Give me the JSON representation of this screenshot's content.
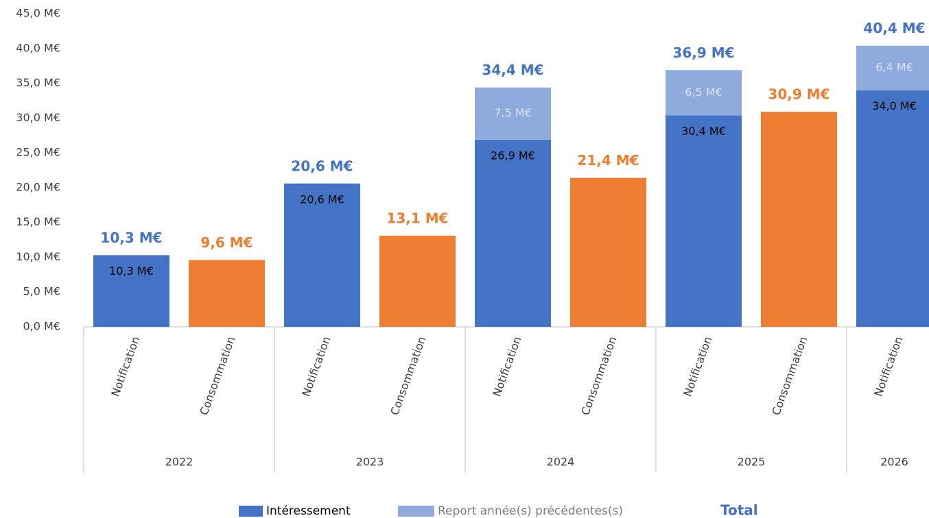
{
  "chart_data": {
    "type": "bar",
    "stacked": true,
    "groups": [
      {
        "name": "2022",
        "categories": [
          "Notification",
          "Consommation"
        ]
      },
      {
        "name": "2023",
        "categories": [
          "Notification",
          "Consommation"
        ]
      },
      {
        "name": "2024",
        "categories": [
          "Notification",
          "Consommation"
        ]
      },
      {
        "name": "2025",
        "categories": [
          "Notification",
          "Consommation"
        ]
      },
      {
        "name": "2026",
        "categories": [
          "Notification"
        ]
      }
    ],
    "series": [
      {
        "name": "Intéressement",
        "color": "#4472c4",
        "colors": [
          "#4472c4",
          "#ed7d31",
          "#4472c4",
          "#ed7d31",
          "#4472c4",
          "#ed7d31",
          "#4472c4",
          "#ed7d31",
          "#4472c4"
        ],
        "values": [
          10.3,
          9.6,
          20.6,
          13.1,
          26.9,
          21.4,
          30.4,
          30.9,
          34.0
        ],
        "value_labels": [
          "10,3 M€",
          null,
          "20,6 M€",
          null,
          "26,9 M€",
          null,
          "30,4 M€",
          null,
          "34,0 M€"
        ]
      },
      {
        "name": "Report année(s) précédentes(s)",
        "color": "#8faadc",
        "values": [
          null,
          null,
          null,
          null,
          7.5,
          null,
          6.5,
          null,
          6.4
        ],
        "value_labels": [
          null,
          null,
          null,
          null,
          "7,5 M€",
          null,
          "6,5 M€",
          null,
          "6,4 M€"
        ]
      },
      {
        "name": "Total",
        "color": "#4472c4",
        "labels_only": true,
        "colors": [
          "#4472c4",
          "#ed7d31",
          "#4472c4",
          "#ed7d31",
          "#4472c4",
          "#ed7d31",
          "#4472c4",
          "#ed7d31",
          "#4472c4"
        ],
        "values": [
          10.3,
          9.6,
          20.6,
          13.1,
          34.4,
          21.4,
          36.9,
          30.9,
          40.4
        ],
        "value_labels": [
          "10,3 M€",
          "9,6 M€",
          "20,6 M€",
          "13,1 M€",
          "34,4 M€",
          "21,4 M€",
          "36,9 M€",
          "30,9 M€",
          "40,4 M€"
        ]
      }
    ],
    "ylim": [
      0,
      45
    ],
    "yticks": [
      {
        "value": 0,
        "label": "0,0 M€"
      },
      {
        "value": 5,
        "label": "5,0 M€"
      },
      {
        "value": 10,
        "label": "10,0 M€"
      },
      {
        "value": 15,
        "label": "15,0 M€"
      },
      {
        "value": 20,
        "label": "20,0 M€"
      },
      {
        "value": 25,
        "label": "25,0 M€"
      },
      {
        "value": 30,
        "label": "30,0 M€"
      },
      {
        "value": 35,
        "label": "35,0 M€"
      },
      {
        "value": 40,
        "label": "40,0 M€"
      },
      {
        "value": 45,
        "label": "45,0 M€"
      }
    ],
    "grid": false,
    "legend": "bottom"
  }
}
